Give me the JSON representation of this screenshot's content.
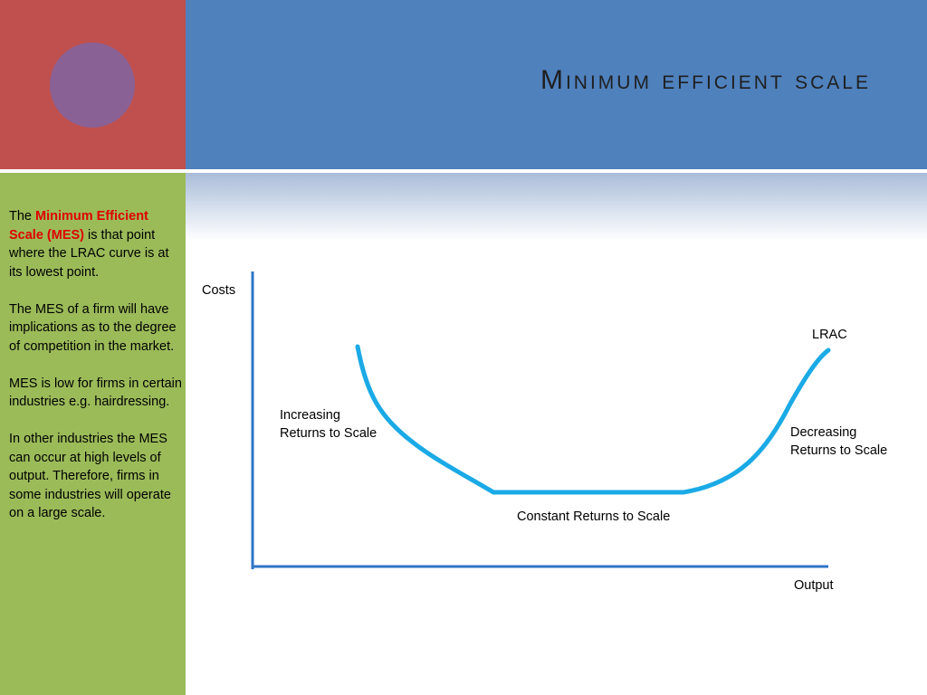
{
  "slide": {
    "title": "Minimum efficient scale",
    "colors": {
      "red": "#c0504d",
      "blue": "#4f81bd",
      "green": "#9bbb59",
      "purple": "#8064a2",
      "curve": "#1aaae6",
      "axis": "#2e75c7",
      "highlight": "#e00000"
    }
  },
  "sidebar": {
    "p1_start": "The ",
    "p1_highlight": "Minimum Efficient Scale (MES)",
    "p1_end": " is that point where the LRAC curve is at its lowest point.",
    "p2": "The MES of a firm will have implications as to the degree of competition in the market.",
    "p3": "MES is low for firms in certain industries e.g. hairdressing.",
    "p4": "In other industries the MES can occur at high levels of output. Therefore, firms in some industries will operate on a large scale."
  },
  "diagram": {
    "y_axis_label": "Costs",
    "x_axis_label": "Output",
    "curve_label": "LRAC",
    "increasing_line1": "Increasing",
    "increasing_line2": "Returns to Scale",
    "constant": "Constant Returns to Scale",
    "decreasing_line1": "Decreasing",
    "decreasing_line2": "Returns to Scale"
  }
}
